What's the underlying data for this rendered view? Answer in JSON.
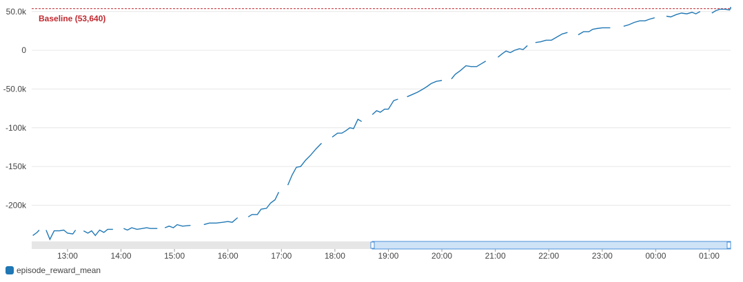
{
  "chart_data": {
    "type": "line",
    "title": "",
    "xlabel": "",
    "ylabel": "",
    "ylim": [
      -244000,
      56000
    ],
    "x_range_hours": [
      12.33,
      25.4
    ],
    "yticks": [
      {
        "value": 50000,
        "label": "50.0k"
      },
      {
        "value": 0,
        "label": "0"
      },
      {
        "value": -50000,
        "label": "-50.0k"
      },
      {
        "value": -100000,
        "label": "-100k"
      },
      {
        "value": -150000,
        "label": "-150k"
      },
      {
        "value": -200000,
        "label": "-200k"
      }
    ],
    "xticks": [
      {
        "value": 13,
        "label": "13:00"
      },
      {
        "value": 14,
        "label": "14:00"
      },
      {
        "value": 15,
        "label": "15:00"
      },
      {
        "value": 16,
        "label": "16:00"
      },
      {
        "value": 17,
        "label": "17:00"
      },
      {
        "value": 18,
        "label": "18:00"
      },
      {
        "value": 19,
        "label": "19:00"
      },
      {
        "value": 20,
        "label": "20:00"
      },
      {
        "value": 21,
        "label": "21:00"
      },
      {
        "value": 22,
        "label": "22:00"
      },
      {
        "value": 23,
        "label": "23:00"
      },
      {
        "value": 24,
        "label": "00:00"
      },
      {
        "value": 25,
        "label": "01:00"
      }
    ],
    "baseline": {
      "value": 53640,
      "label": "Baseline (53,640)",
      "color": "#c0282e"
    },
    "series": [
      {
        "name": "episode_reward_mean",
        "color": "#1f77b4",
        "segments": [
          [
            [
              12.35,
              -239000
            ],
            [
              12.43,
              -235000
            ],
            [
              12.47,
              -232000
            ]
          ],
          [
            [
              12.6,
              -232000
            ],
            [
              12.67,
              -244000
            ],
            [
              12.75,
              -233000
            ],
            [
              12.85,
              -233000
            ],
            [
              12.93,
              -232000
            ],
            [
              13.0,
              -236000
            ],
            [
              13.1,
              -237000
            ],
            [
              13.15,
              -232000
            ]
          ],
          [
            [
              13.3,
              -233000
            ],
            [
              13.38,
              -236000
            ],
            [
              13.45,
              -233000
            ],
            [
              13.52,
              -239000
            ],
            [
              13.6,
              -232000
            ],
            [
              13.68,
              -235000
            ],
            [
              13.75,
              -231000
            ],
            [
              13.85,
              -231000
            ]
          ],
          [
            [
              14.05,
              -230000
            ],
            [
              14.12,
              -232000
            ],
            [
              14.2,
              -229000
            ],
            [
              14.3,
              -231000
            ],
            [
              14.4,
              -230000
            ],
            [
              14.48,
              -229000
            ],
            [
              14.55,
              -230000
            ],
            [
              14.68,
              -230000
            ]
          ],
          [
            [
              14.82,
              -229000
            ],
            [
              14.9,
              -227000
            ],
            [
              14.98,
              -229000
            ],
            [
              15.05,
              -225000
            ],
            [
              15.15,
              -227000
            ],
            [
              15.3,
              -226000
            ]
          ],
          [
            [
              15.55,
              -225000
            ],
            [
              15.65,
              -223000
            ],
            [
              15.78,
              -223000
            ],
            [
              15.9,
              -222000
            ],
            [
              16.0,
              -221000
            ],
            [
              16.08,
              -222000
            ],
            [
              16.18,
              -216000
            ]
          ],
          [
            [
              16.38,
              -215000
            ],
            [
              16.45,
              -212000
            ],
            [
              16.55,
              -212000
            ],
            [
              16.62,
              -205000
            ],
            [
              16.72,
              -204000
            ],
            [
              16.8,
              -197000
            ],
            [
              16.88,
              -193000
            ],
            [
              16.95,
              -183000
            ]
          ],
          [
            [
              17.12,
              -174000
            ],
            [
              17.2,
              -161000
            ],
            [
              17.28,
              -151000
            ],
            [
              17.36,
              -150000
            ],
            [
              17.45,
              -142000
            ],
            [
              17.55,
              -135000
            ],
            [
              17.65,
              -127000
            ],
            [
              17.75,
              -120000
            ]
          ],
          [
            [
              17.95,
              -112000
            ],
            [
              18.05,
              -107000
            ],
            [
              18.13,
              -107000
            ],
            [
              18.2,
              -104000
            ],
            [
              18.28,
              -100000
            ],
            [
              18.35,
              -101000
            ],
            [
              18.43,
              -89000
            ],
            [
              18.5,
              -92000
            ]
          ],
          [
            [
              18.7,
              -83000
            ],
            [
              18.78,
              -78000
            ],
            [
              18.85,
              -80000
            ],
            [
              18.93,
              -76000
            ],
            [
              19.0,
              -76000
            ],
            [
              19.1,
              -65000
            ],
            [
              19.18,
              -63000
            ]
          ],
          [
            [
              19.35,
              -60000
            ],
            [
              19.45,
              -57000
            ],
            [
              19.55,
              -54000
            ],
            [
              19.65,
              -50000
            ],
            [
              19.72,
              -47000
            ],
            [
              19.8,
              -43000
            ],
            [
              19.9,
              -40000
            ],
            [
              20.0,
              -39000
            ]
          ],
          [
            [
              20.18,
              -37000
            ],
            [
              20.25,
              -31000
            ],
            [
              20.35,
              -26000
            ],
            [
              20.45,
              -20000
            ],
            [
              20.55,
              -21000
            ],
            [
              20.65,
              -21000
            ],
            [
              20.75,
              -17000
            ],
            [
              20.82,
              -14000
            ]
          ],
          [
            [
              21.05,
              -9000
            ],
            [
              21.12,
              -5000
            ],
            [
              21.2,
              -1000
            ],
            [
              21.28,
              -3000
            ],
            [
              21.36,
              0
            ],
            [
              21.45,
              2000
            ],
            [
              21.52,
              1000
            ],
            [
              21.6,
              6000
            ]
          ],
          [
            [
              21.75,
              10000
            ],
            [
              21.85,
              11000
            ],
            [
              21.95,
              13000
            ],
            [
              22.05,
              13000
            ],
            [
              22.15,
              17000
            ],
            [
              22.25,
              21000
            ],
            [
              22.35,
              23000
            ]
          ],
          [
            [
              22.55,
              20000
            ],
            [
              22.65,
              24000
            ],
            [
              22.75,
              24000
            ],
            [
              22.82,
              27000
            ],
            [
              22.9,
              28000
            ],
            [
              23.0,
              29000
            ],
            [
              23.15,
              29000
            ]
          ],
          [
            [
              23.4,
              31000
            ],
            [
              23.5,
              33000
            ],
            [
              23.6,
              36000
            ],
            [
              23.7,
              38000
            ],
            [
              23.8,
              38000
            ],
            [
              23.88,
              40000
            ],
            [
              23.98,
              42000
            ]
          ],
          [
            [
              24.2,
              44000
            ],
            [
              24.28,
              43000
            ],
            [
              24.38,
              46000
            ],
            [
              24.48,
              48000
            ],
            [
              24.58,
              47000
            ],
            [
              24.68,
              49000
            ],
            [
              24.75,
              47000
            ],
            [
              24.83,
              50000
            ]
          ],
          [
            [
              25.05,
              48000
            ],
            [
              25.12,
              51000
            ],
            [
              25.2,
              53000
            ],
            [
              25.3,
              53000
            ],
            [
              25.38,
              52000
            ],
            [
              25.5,
              54000
            ],
            [
              25.6,
              55000
            ],
            [
              25.72,
              54000
            ],
            [
              25.82,
              55000
            ],
            [
              25.9,
              55000
            ],
            [
              25.98,
              55000
            ],
            [
              26.05,
              55500
            ],
            [
              26.12,
              54500
            ],
            [
              26.18,
              55500
            ],
            [
              26.25,
              56000
            ]
          ]
        ]
      }
    ],
    "legend": {
      "placement": "bottom-left",
      "entries": [
        "episode_reward_mean"
      ]
    },
    "grid": true
  }
}
